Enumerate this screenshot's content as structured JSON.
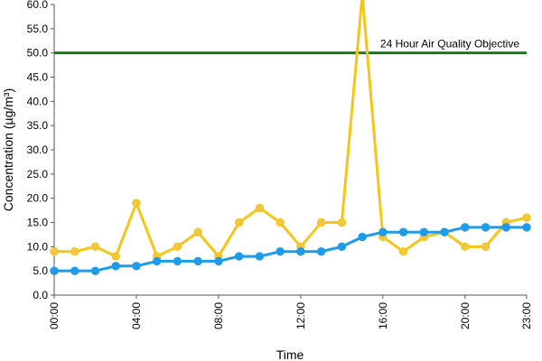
{
  "chart_data": {
    "type": "line",
    "xlabel": "Time",
    "ylabel": "Concentration (µg/m³)",
    "ylim": [
      0,
      60
    ],
    "y_ticks": [
      "0.0",
      "5.0",
      "10.0",
      "15.0",
      "20.0",
      "25.0",
      "30.0",
      "35.0",
      "40.0",
      "45.0",
      "50.0",
      "55.0",
      "60.0"
    ],
    "x_ticks": [
      "00:00",
      "04:00",
      "08:00",
      "12:00",
      "16:00",
      "20:00",
      "23:00"
    ],
    "x": [
      0,
      1,
      2,
      3,
      4,
      5,
      6,
      7,
      8,
      9,
      10,
      11,
      12,
      13,
      14,
      15,
      16,
      17,
      18,
      19,
      20,
      21,
      22,
      23
    ],
    "series": [
      {
        "color": "#f5c518",
        "marker_fill": "#f2c640",
        "values": [
          9,
          9,
          10,
          8,
          19,
          8,
          10,
          13,
          8,
          15,
          18,
          15,
          10,
          15,
          15,
          62,
          12,
          9,
          12,
          13,
          10,
          10,
          15,
          16
        ]
      },
      {
        "color": "#1e9be9",
        "marker_fill": "#1e9be9",
        "values": [
          5,
          5,
          5,
          6,
          6,
          7,
          7,
          7,
          7,
          8,
          8,
          9,
          9,
          9,
          10,
          12,
          13,
          13,
          13,
          13,
          14,
          14,
          14,
          14
        ]
      }
    ],
    "reference_line": {
      "value": 50,
      "label": "24 Hour Air Quality Objective",
      "color": "#1a7a1a"
    },
    "grid": false,
    "legend": "none"
  }
}
